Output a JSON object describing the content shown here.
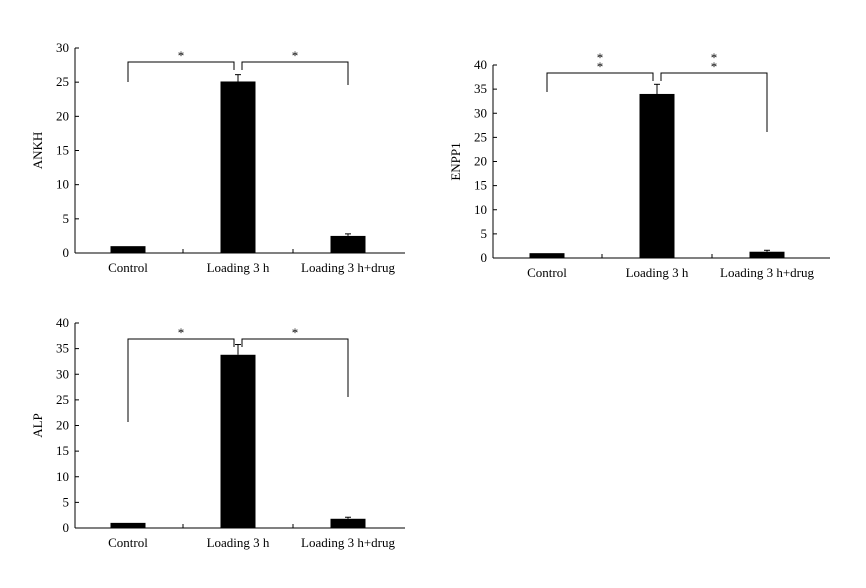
{
  "chart_data": [
    {
      "type": "bar",
      "ylabel": "ANKH",
      "categories": [
        "Control",
        "Loading 3 h",
        "Loading 3 h+drug"
      ],
      "values": [
        1.0,
        25.1,
        2.5
      ],
      "errors": [
        0,
        1.0,
        0.3
      ],
      "ylim": [
        0,
        30
      ],
      "yticks": [
        0,
        5,
        10,
        15,
        20,
        25,
        30
      ],
      "significance": [
        {
          "from": 0,
          "to": 1,
          "label": "*"
        },
        {
          "from": 1,
          "to": 2,
          "label": "*"
        }
      ],
      "grid": false
    },
    {
      "type": "bar",
      "ylabel": "ENPP1",
      "categories": [
        "Control",
        "Loading 3 h",
        "Loading 3 h+drug"
      ],
      "values": [
        1.0,
        34.0,
        1.3
      ],
      "errors": [
        0,
        2.0,
        0.3
      ],
      "ylim": [
        0,
        40
      ],
      "yticks": [
        0,
        5,
        10,
        15,
        20,
        25,
        30,
        35,
        40
      ],
      "significance": [
        {
          "from": 0,
          "to": 1,
          "label": "*\n*"
        },
        {
          "from": 1,
          "to": 2,
          "label": "*\n*"
        }
      ],
      "grid": false
    },
    {
      "type": "bar",
      "ylabel": "ALP",
      "categories": [
        "Control",
        "Loading 3 h",
        "Loading 3 h+drug"
      ],
      "values": [
        1.0,
        33.8,
        1.8
      ],
      "errors": [
        0,
        2.0,
        0.3
      ],
      "ylim": [
        0,
        40
      ],
      "yticks": [
        0,
        5,
        10,
        15,
        20,
        25,
        30,
        35,
        40
      ],
      "significance": [
        {
          "from": 0,
          "to": 1,
          "label": "*"
        },
        {
          "from": 1,
          "to": 2,
          "label": "*"
        }
      ],
      "grid": false
    }
  ]
}
